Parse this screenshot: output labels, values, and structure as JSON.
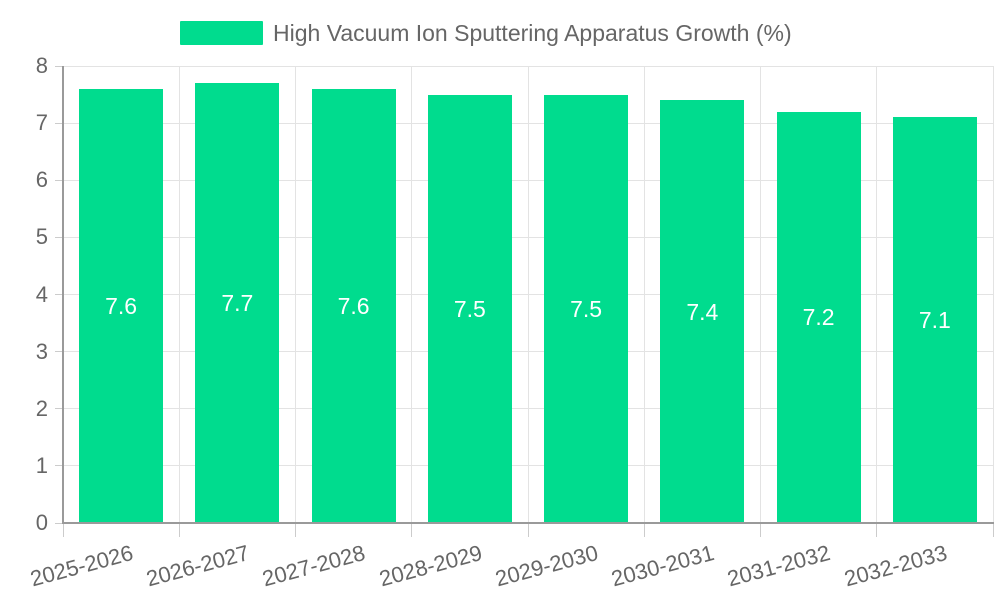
{
  "legend": {
    "label": "High Vacuum Ion Sputtering Apparatus Growth (%)"
  },
  "chart_data": {
    "type": "bar",
    "title": "High Vacuum Ion Sputtering Apparatus Growth (%)",
    "categories": [
      "2025-2026",
      "2026-2027",
      "2027-2028",
      "2028-2029",
      "2029-2030",
      "2030-2031",
      "2031-2032",
      "2032-2033"
    ],
    "values": [
      7.6,
      7.7,
      7.6,
      7.5,
      7.5,
      7.4,
      7.2,
      7.1
    ],
    "value_labels": [
      "7.6",
      "7.7",
      "7.6",
      "7.5",
      "7.5",
      "7.4",
      "7.2",
      "7.1"
    ],
    "y_tick_labels": [
      "0",
      "1",
      "2",
      "3",
      "4",
      "5",
      "6",
      "7",
      "8"
    ],
    "xlabel": "",
    "ylabel": "",
    "ylim": [
      0,
      8
    ],
    "ytick_step": 1,
    "grid": true,
    "legend_position": "top-center",
    "x_tick_label_rotation_deg": -15,
    "bar_color": "#00DC8E",
    "bar_label_color": "#FFFFFF",
    "axis_text_color": "#666666",
    "grid_color": "#E3E3E3",
    "axis_line_color": "#9A9A9A",
    "tick_color": "#CCCCCC"
  }
}
